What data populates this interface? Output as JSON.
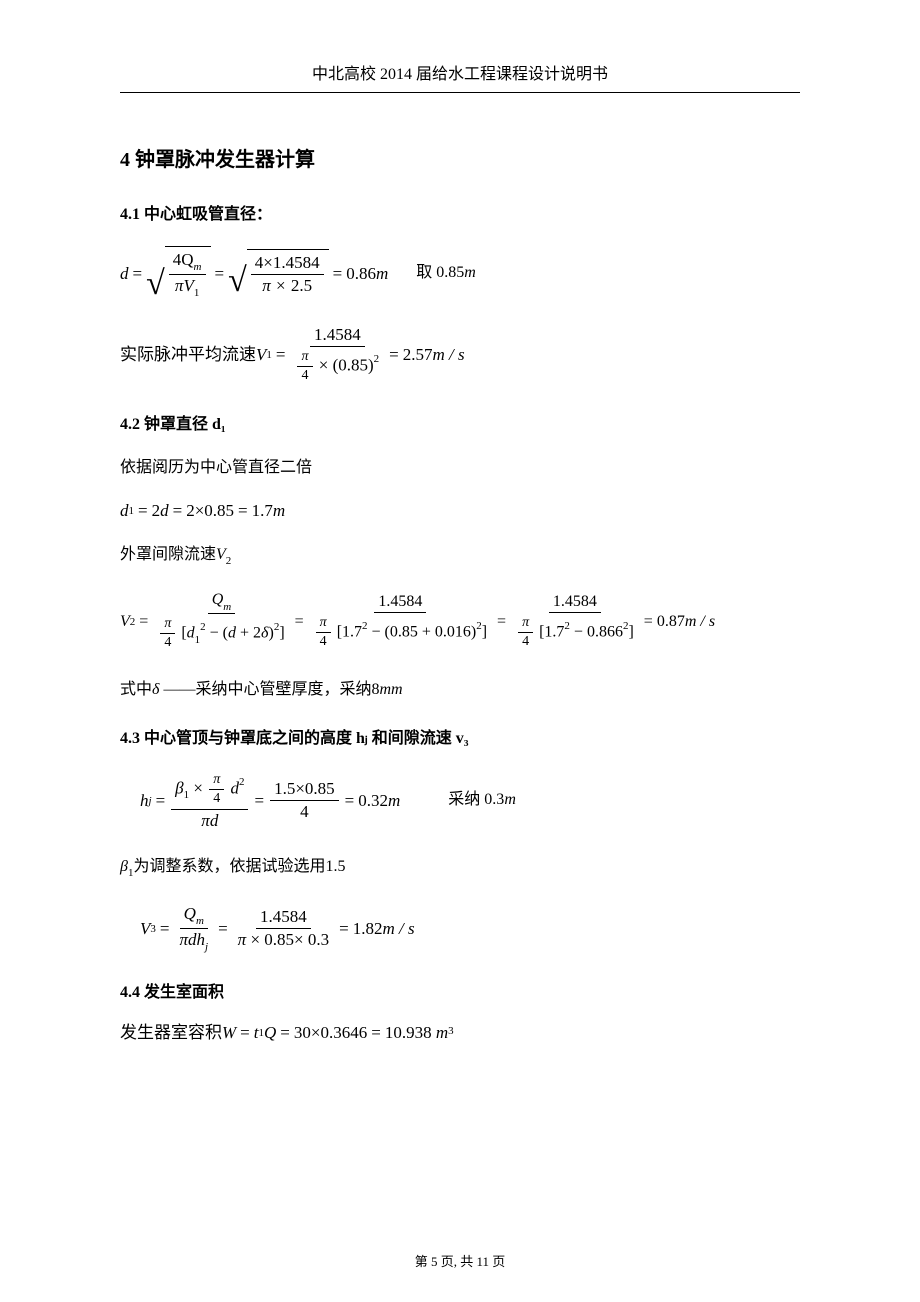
{
  "document": {
    "header_title": "中北高校 2014 届给水工程课程设计说明书",
    "footer": "第 5 页, 共 11 页",
    "text_color": "#000000",
    "background_color": "#ffffff",
    "font_family_cn": "SimSun, 宋体, serif",
    "font_family_math": "Times New Roman, serif",
    "fontsize_h1": 20,
    "fontsize_h2": 16,
    "fontsize_body": 16,
    "fontsize_math": 17
  },
  "section4": {
    "title": "4  钟罩脉冲发生器计算"
  },
  "s41": {
    "title": "4.1  中心虹吸管直径：",
    "var_d": "d",
    "num1": "4Q",
    "sub_m": "m",
    "den1": "πV",
    "sub_1": "1",
    "num2": "4×1.4584",
    "den2": "π × 2.5",
    "result1_val": "0.86",
    "result1_unit": "m",
    "take_text": "取 0.85",
    "take_unit": "m",
    "para2_prefix": "实际脉冲平均流速  ",
    "v1": "V",
    "v1_sub": "1",
    "v1_num": "1.4584",
    "v1_den_pi": "π",
    "v1_den_4": "4",
    "v1_den_tail": "× (0.85)",
    "v1_den_exp": "2",
    "v1_val": "2.57",
    "v1_unit": "m / s"
  },
  "s42": {
    "title": "4.2  钟罩直径 d₁",
    "para1": "依据阅历为中心管直径二倍",
    "eq_d1": "d",
    "eq_d1_sub": "1",
    "eq_rhs1": "2d",
    "eq_rhs2": "2×0.85",
    "eq_val": "1.7",
    "eq_unit": "m",
    "para2_pre": "外罩间隙流速",
    "para2_var": "V",
    "para2_sub": "2",
    "v2_var": "V",
    "v2_sub": "2",
    "v2_num1": "Q",
    "v2_num1_sub": "m",
    "v2_den1_pi": "π",
    "v2_den1_4": "4",
    "v2_den1_a": "[d",
    "v2_den1_a1_sub": "1",
    "v2_den1_exp": "2",
    "v2_den1_mid": " − (d + 2δ)",
    "v2_den1_close": "]",
    "v2_num2": "1.4584",
    "v2_den2_a": "[1.7",
    "v2_den2_mid": " − (0.85 + 0.016)",
    "v2_num3": "1.4584",
    "v2_den3_a": "[1.7",
    "v2_den3_mid": " − 0.866",
    "v2_val": "0.87",
    "v2_unit": "m / s",
    "para3_pre": "式中",
    "para3_delta": "δ",
    "para3_dash": "——采纳中心管壁厚度，采纳8",
    "para3_unit": "mm"
  },
  "s43": {
    "title": "4.3  中心管顶与钟罩底之间的高度 hⱼ 和间隙流速 v₃",
    "hj_var": "h",
    "hj_sub": "j",
    "hj_num_b": "β",
    "hj_num_b_sub": "1",
    "hj_num_times": " ×",
    "hj_num_pi": "π",
    "hj_num_4": "4",
    "hj_num_d": "d",
    "hj_num_exp": "2",
    "hj_den": "πd",
    "hj_num2": "1.5×0.85",
    "hj_den2": "4",
    "hj_val": "0.32",
    "hj_unit": "m",
    "hj_take": "采纳 0.3",
    "hj_take_unit": "m",
    "para_beta_var": "β",
    "para_beta_sub": "1",
    "para_beta_text": "为调整系数，依据试验选用1.5",
    "v3_var": "V",
    "v3_sub": "3",
    "v3_num1": "Q",
    "v3_num1_sub": "m",
    "v3_den1": "πdh",
    "v3_den1_sub": "j",
    "v3_num2": "1.4584",
    "v3_den2": "π × 0.85× 0.3",
    "v3_val": "1.82",
    "v3_unit": "m / s"
  },
  "s44": {
    "title": "4.4  发生室面积",
    "para_prefix": "发生器室容积   ",
    "w_var": "W",
    "w_rhs1a": "t",
    "w_rhs1a_sub": "1",
    "w_rhs1b": "Q",
    "w_rhs2": "30×0.3646",
    "w_val": "10.938",
    "w_unit_base": "m",
    "w_unit_exp": "3"
  }
}
